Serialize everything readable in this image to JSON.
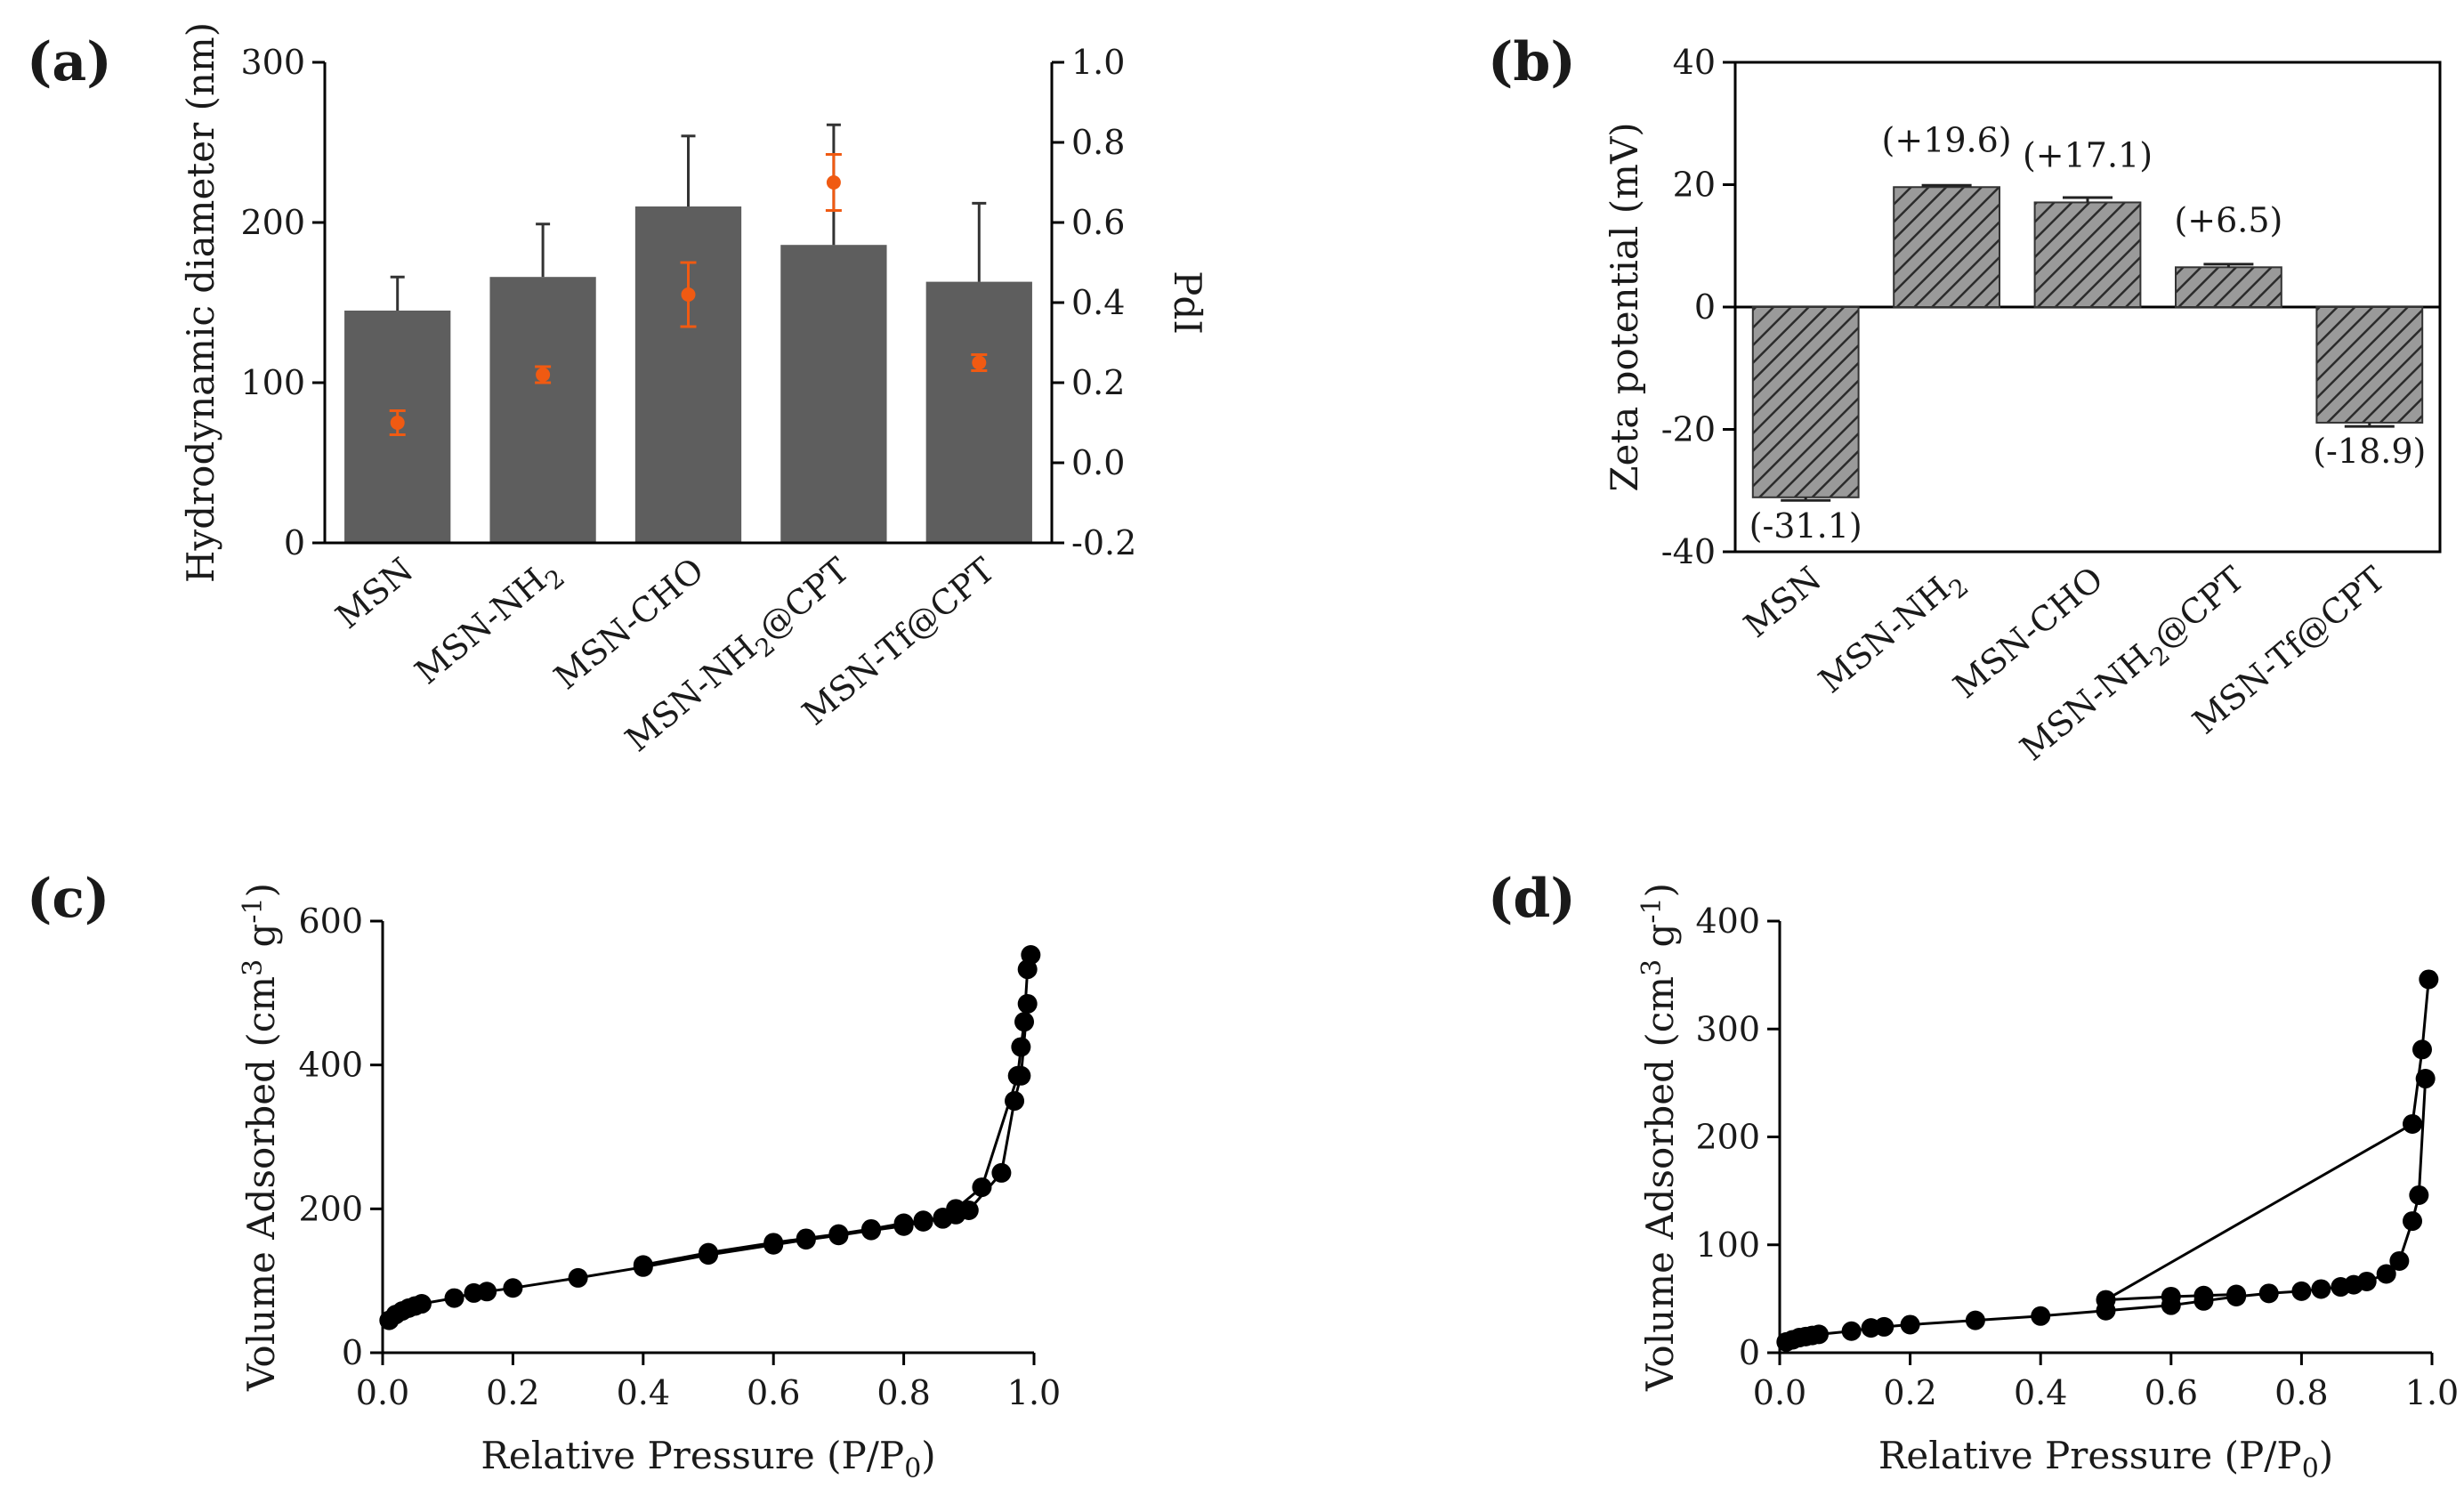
{
  "colors": {
    "bar_dark": "#5e5e5e",
    "bar_hatched_fill": "#9a9a9a",
    "hatch_line": "#2b2b2b",
    "pdi_point": "#f05a12",
    "isotherm": "#000000"
  },
  "chart_data": [
    {
      "panel": "(a)",
      "type": "bar",
      "categories": [
        "MSN",
        "MSN-NH2",
        "MSN-CHO",
        "MSN-NH2@CPT",
        "MSN-Tf@CPT"
      ],
      "category_display": [
        {
          "main": "MSN",
          "sub": "",
          "tail": ""
        },
        {
          "main": "MSN-NH",
          "sub": "2",
          "tail": ""
        },
        {
          "main": "MSN-CHO",
          "sub": "",
          "tail": ""
        },
        {
          "main": "MSN-NH",
          "sub": "2",
          "tail": "@CPT"
        },
        {
          "main": "MSN-Tf@CPT",
          "sub": "",
          "tail": ""
        }
      ],
      "series": [
        {
          "name": "Hydrodynamic diameter (nm)",
          "axis": "left",
          "values": [
            145,
            166,
            210,
            186,
            163
          ],
          "errors": [
            21,
            33,
            44,
            75,
            49
          ]
        },
        {
          "name": "PdI",
          "axis": "right",
          "values": [
            0.1,
            0.22,
            0.42,
            0.7,
            0.25
          ],
          "errors": [
            0.03,
            0.02,
            0.08,
            0.07,
            0.02
          ]
        }
      ],
      "ylabel": "Hydrodynamic diameter (nm)",
      "ylim": [
        0,
        300
      ],
      "yticks": [
        "0",
        "100",
        "200",
        "300"
      ],
      "y2label": "PdI",
      "y2lim": [
        -0.2,
        1.0
      ],
      "y2ticks": [
        "-0.2",
        "0.0",
        "0.2",
        "0.4",
        "0.6",
        "0.8",
        "1.0"
      ]
    },
    {
      "panel": "(b)",
      "type": "bar",
      "categories": [
        "MSN",
        "MSN-NH2",
        "MSN-CHO",
        "MSN-NH2@CPT",
        "MSN-Tf@CPT"
      ],
      "category_display": [
        {
          "main": "MSN",
          "sub": "",
          "tail": ""
        },
        {
          "main": "MSN-NH",
          "sub": "2",
          "tail": ""
        },
        {
          "main": "MSN-CHO",
          "sub": "",
          "tail": ""
        },
        {
          "main": "MSN-NH",
          "sub": "2",
          "tail": "@CPT"
        },
        {
          "main": "MSN-Tf@CPT",
          "sub": "",
          "tail": ""
        }
      ],
      "values": [
        -31.1,
        19.6,
        17.1,
        6.5,
        -18.9
      ],
      "errors": [
        0.5,
        0.3,
        0.8,
        0.5,
        0.6
      ],
      "labels": [
        "(-31.1)",
        "(+19.6)",
        "(+17.1)",
        "(+6.5)",
        "(-18.9)"
      ],
      "ylabel": "Zeta potential (mV)",
      "ylim": [
        -40,
        40
      ],
      "yticks": [
        "-40",
        "-20",
        "0",
        "20",
        "40"
      ]
    },
    {
      "panel": "(c)",
      "type": "line",
      "xlabel_main": "Relative Pressure (P/P",
      "xlabel_sub": "0",
      "xlabel_tail": ")",
      "ylabel_parts": [
        "Volume Adsorbed (cm",
        "3",
        " g",
        "-1",
        ")"
      ],
      "xlim": [
        0,
        1.0
      ],
      "ylim": [
        0,
        600
      ],
      "xticks": [
        "0.0",
        "0.2",
        "0.4",
        "0.6",
        "0.8",
        "1.0"
      ],
      "yticks": [
        "0",
        "200",
        "400",
        "600"
      ],
      "series": [
        {
          "name": "adsorption",
          "x": [
            0.01,
            0.02,
            0.03,
            0.04,
            0.05,
            0.06,
            0.11,
            0.14,
            0.16,
            0.2,
            0.3,
            0.4,
            0.5,
            0.6,
            0.65,
            0.7,
            0.75,
            0.8,
            0.83,
            0.86,
            0.88,
            0.9,
            0.95,
            0.97,
            0.98,
            0.99
          ],
          "y": [
            45,
            53,
            58,
            62,
            65,
            68,
            76,
            83,
            85,
            90,
            104,
            119,
            136,
            150,
            157,
            163,
            170,
            176,
            182,
            186,
            192,
            198,
            250,
            350,
            385,
            485
          ]
        },
        {
          "name": "desorption",
          "x": [
            0.995,
            0.99,
            0.985,
            0.98,
            0.975,
            0.92,
            0.88,
            0.86,
            0.83,
            0.8,
            0.75,
            0.7,
            0.65,
            0.6,
            0.5,
            0.4
          ],
          "y": [
            553,
            533,
            460,
            425,
            385,
            230,
            200,
            188,
            184,
            180,
            172,
            165,
            159,
            153,
            139,
            122
          ]
        }
      ]
    },
    {
      "panel": "(d)",
      "type": "line",
      "xlabel_main": "Relative Pressure (P/P",
      "xlabel_sub": "0",
      "xlabel_tail": ")",
      "ylabel_parts": [
        "Volume Adsorbed (cm",
        "3",
        " g",
        "-1",
        ")"
      ],
      "xlim": [
        0,
        1.0
      ],
      "ylim": [
        0,
        400
      ],
      "xticks": [
        "0.0",
        "0.2",
        "0.4",
        "0.6",
        "0.8",
        "1.0"
      ],
      "yticks": [
        "0",
        "100",
        "200",
        "300",
        "400"
      ],
      "series": [
        {
          "name": "adsorption",
          "x": [
            0.01,
            0.02,
            0.03,
            0.04,
            0.05,
            0.06,
            0.11,
            0.14,
            0.16,
            0.2,
            0.3,
            0.4,
            0.5,
            0.6,
            0.65,
            0.7,
            0.75,
            0.8,
            0.83,
            0.86,
            0.88,
            0.9,
            0.93,
            0.95,
            0.97,
            0.98,
            0.99
          ],
          "y": [
            10,
            12,
            14,
            15,
            16,
            17,
            20,
            23,
            24,
            26,
            30,
            34,
            39,
            44,
            48,
            52,
            55,
            57,
            59,
            61,
            63,
            66,
            73,
            85,
            122,
            146,
            254
          ]
        },
        {
          "name": "desorption",
          "x": [
            0.995,
            0.985,
            0.97,
            0.5,
            0.6,
            0.65,
            0.7
          ],
          "y": [
            346,
            281,
            212,
            49,
            52,
            53,
            54
          ]
        }
      ]
    }
  ]
}
